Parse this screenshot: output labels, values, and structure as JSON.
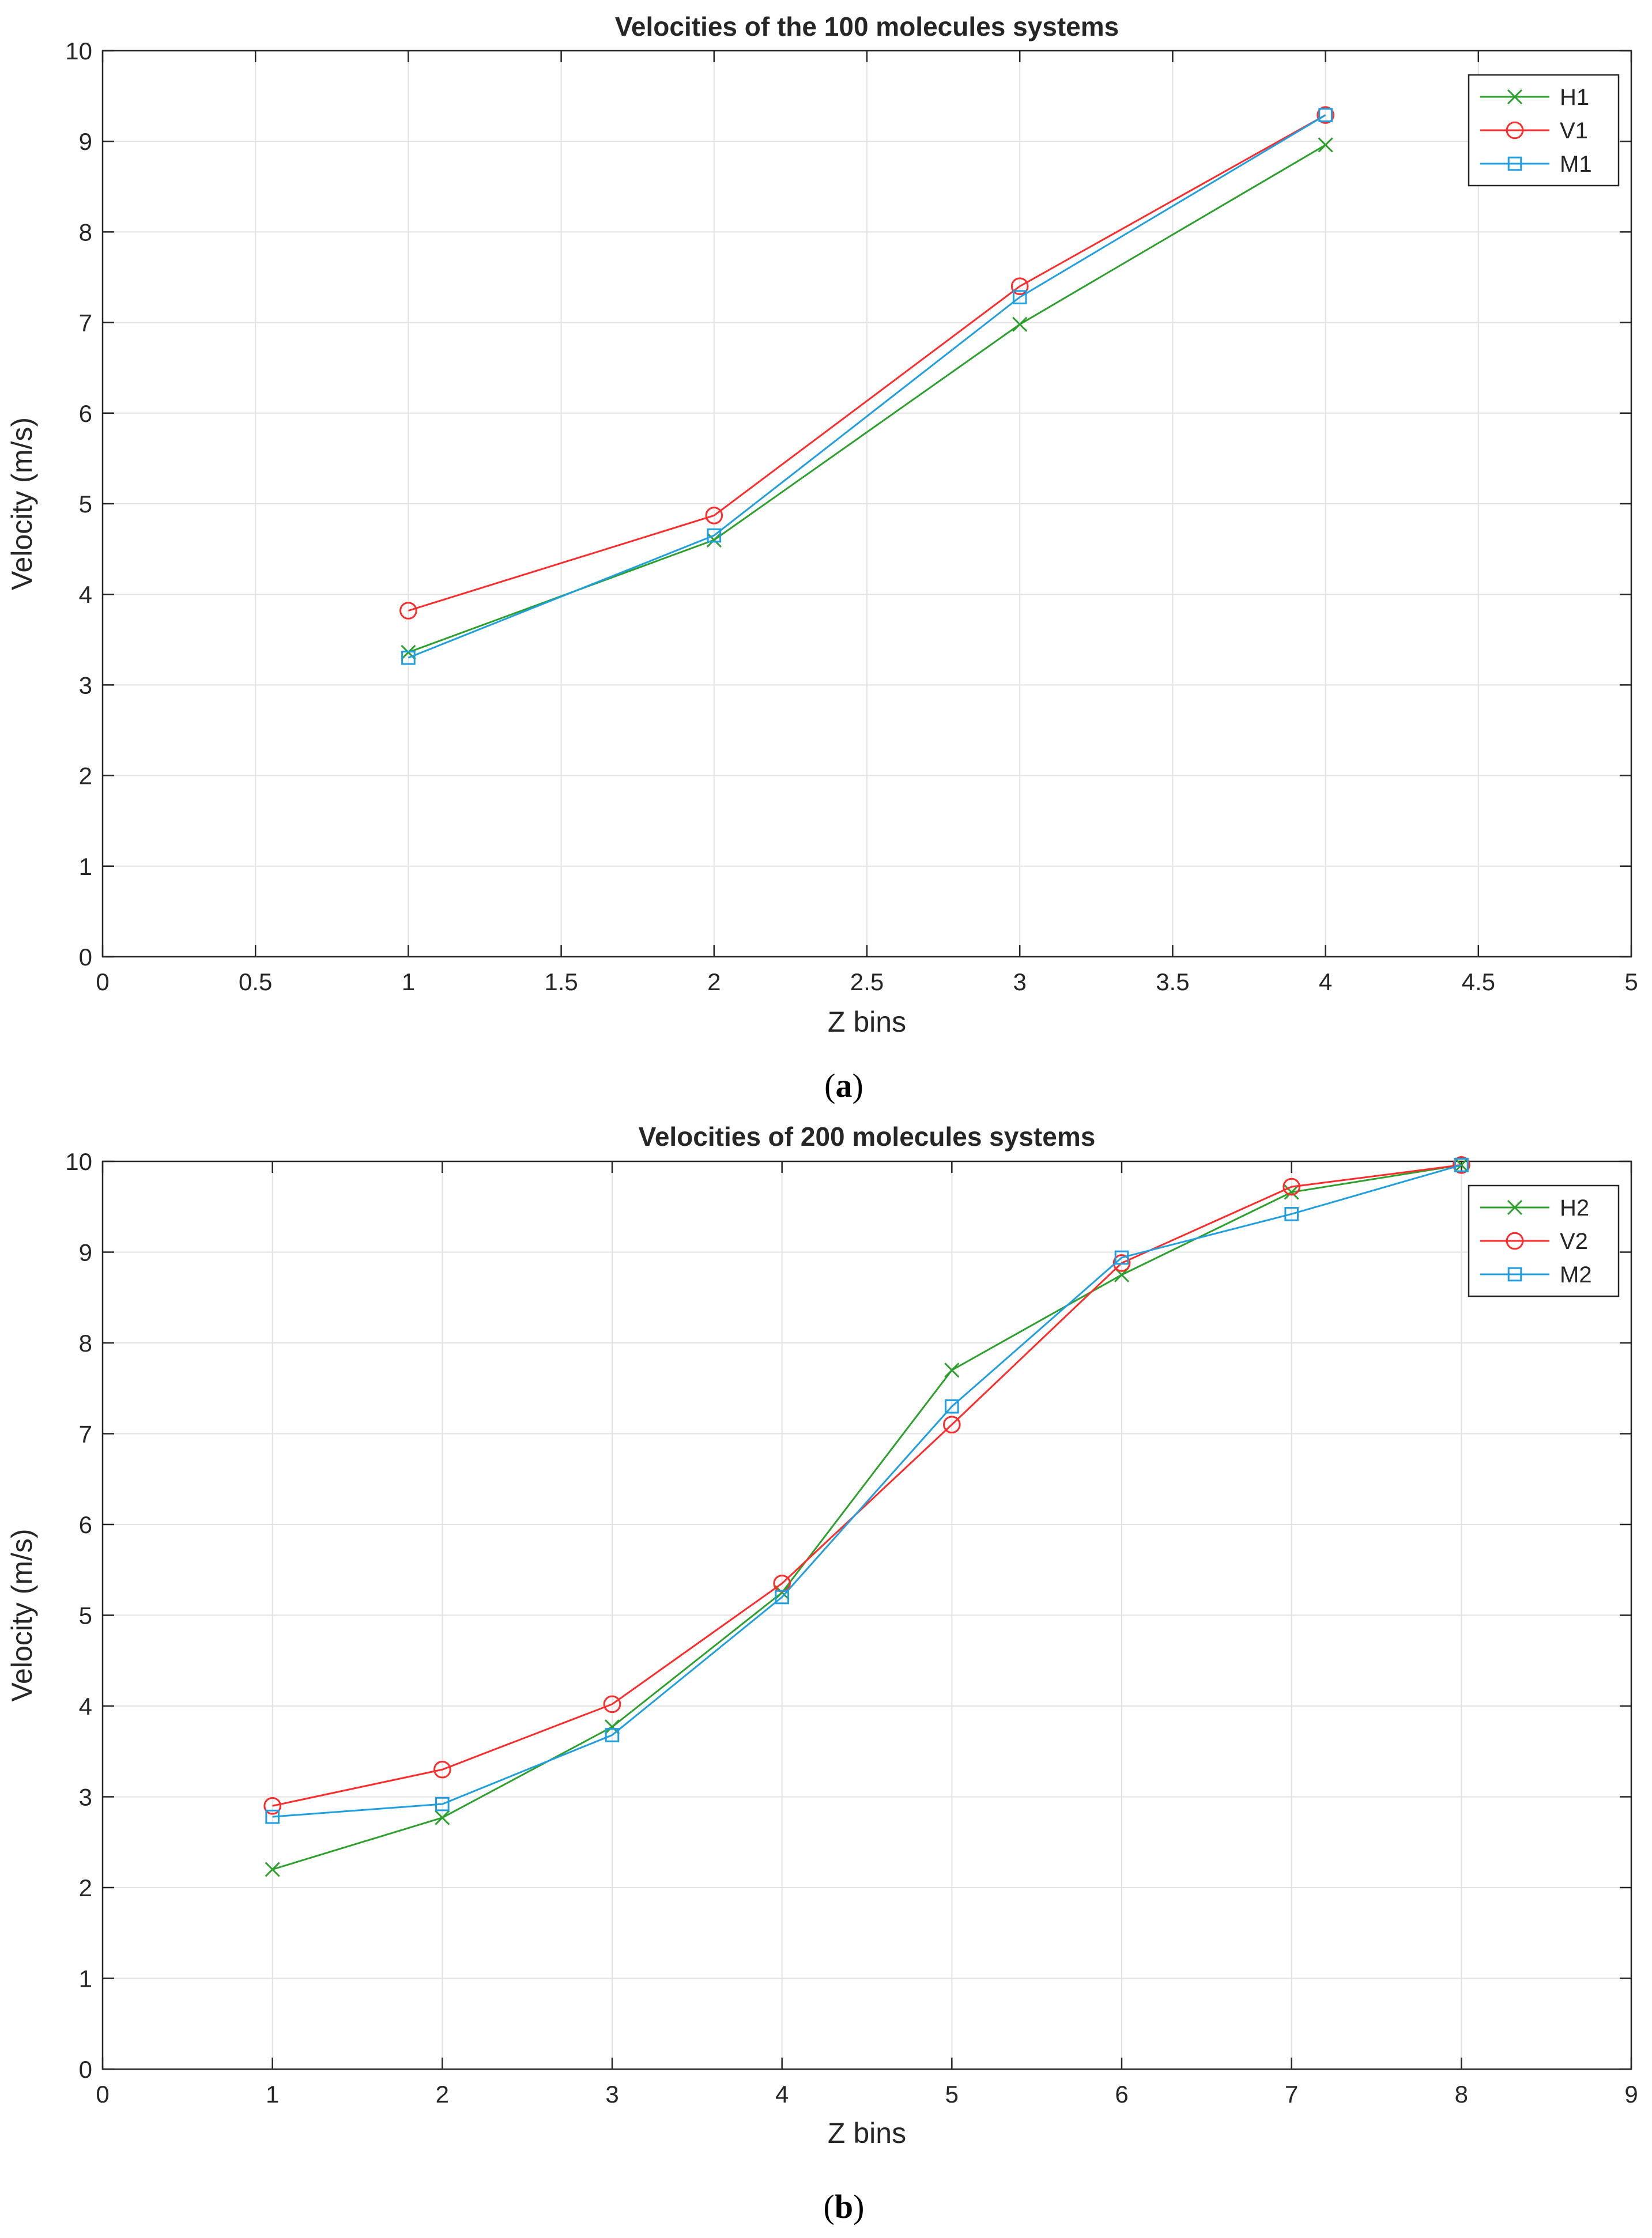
{
  "chart_data": [
    {
      "type": "line",
      "title": "Velocities of the 100 molecules systems",
      "xlabel": "Z bins",
      "ylabel": "Velocity (m/s)",
      "xlim": [
        0,
        5
      ],
      "ylim": [
        0,
        10
      ],
      "xticks": [
        "0",
        "0.5",
        "1",
        "1.5",
        "2",
        "2.5",
        "3",
        "3.5",
        "4",
        "4.5",
        "5"
      ],
      "yticks": [
        "0",
        "1",
        "2",
        "3",
        "4",
        "5",
        "6",
        "7",
        "8",
        "9",
        "10"
      ],
      "grid": true,
      "legend_position": "top-right",
      "caption_letter": "a",
      "series": [
        {
          "name": "H1",
          "marker": "x",
          "color": "#2ca02c",
          "x": [
            1,
            2,
            3,
            4
          ],
          "y": [
            3.36,
            4.6,
            6.98,
            8.96
          ]
        },
        {
          "name": "V1",
          "marker": "o",
          "color": "#ff2a2a",
          "x": [
            1,
            2,
            3,
            4
          ],
          "y": [
            3.82,
            4.87,
            7.4,
            9.29
          ]
        },
        {
          "name": "M1",
          "marker": "s",
          "color": "#1f9fe0",
          "x": [
            1,
            2,
            3,
            4
          ],
          "y": [
            3.3,
            4.65,
            7.28,
            9.29
          ]
        }
      ]
    },
    {
      "type": "line",
      "title": "Velocities of 200 molecules systems",
      "xlabel": "Z bins",
      "ylabel": "Velocity (m/s)",
      "xlim": [
        0,
        9
      ],
      "ylim": [
        0,
        10
      ],
      "xticks": [
        "0",
        "1",
        "2",
        "3",
        "4",
        "5",
        "6",
        "7",
        "8",
        "9"
      ],
      "yticks": [
        "0",
        "1",
        "2",
        "3",
        "4",
        "5",
        "6",
        "7",
        "8",
        "9",
        "10"
      ],
      "grid": true,
      "legend_position": "top-right",
      "caption_letter": "b",
      "series": [
        {
          "name": "H2",
          "marker": "x",
          "color": "#2ca02c",
          "x": [
            1,
            2,
            3,
            4,
            5,
            6,
            7,
            8
          ],
          "y": [
            2.2,
            2.77,
            3.77,
            5.25,
            7.7,
            8.75,
            9.66,
            9.96
          ]
        },
        {
          "name": "V2",
          "marker": "o",
          "color": "#ff2a2a",
          "x": [
            1,
            2,
            3,
            4,
            5,
            6,
            7,
            8
          ],
          "y": [
            2.9,
            3.3,
            4.02,
            5.35,
            7.1,
            8.88,
            9.72,
            9.96
          ]
        },
        {
          "name": "M2",
          "marker": "s",
          "color": "#1f9fe0",
          "x": [
            1,
            2,
            3,
            4,
            5,
            6,
            7,
            8
          ],
          "y": [
            2.78,
            2.92,
            3.68,
            5.2,
            7.3,
            8.94,
            9.42,
            9.96
          ]
        }
      ]
    }
  ]
}
